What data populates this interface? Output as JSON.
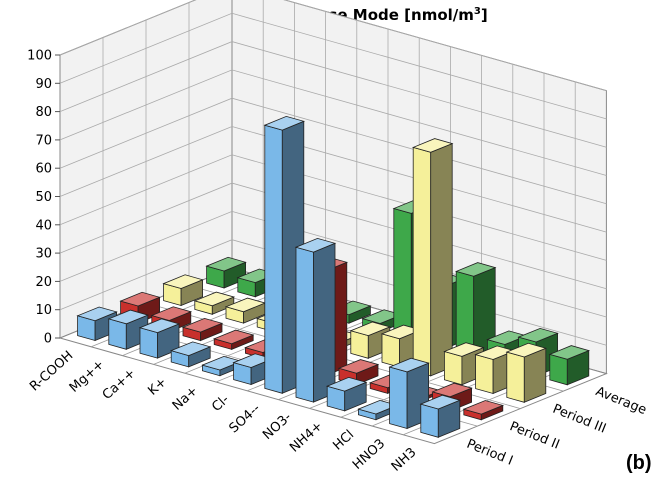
{
  "figure_tag": "(b)",
  "chart_data": {
    "type": "bar",
    "title_text": "Observation: Coarse Mode [nmol/m",
    "title_sup": "3",
    "title_close": "]",
    "categories": [
      "R-COOH",
      "Mg++",
      "Ca++",
      "K+",
      "Na+",
      "Cl-",
      "SO4--",
      "NO3-",
      "NH4+",
      "HCl",
      "HNO3",
      "NH3"
    ],
    "series": [
      {
        "name": "Period I",
        "color": "#7ab8e8",
        "values": [
          7,
          9,
          9,
          4,
          2,
          6,
          93,
          53,
          7,
          2,
          20,
          10
        ]
      },
      {
        "name": "Period II",
        "color": "#c8302c",
        "values": [
          6,
          4,
          3,
          2,
          2,
          2,
          37,
          4,
          2,
          1,
          5,
          2
        ]
      },
      {
        "name": "Period III",
        "color": "#f5f09a",
        "values": [
          6,
          3,
          4,
          3,
          3,
          2,
          8,
          10,
          79,
          10,
          12,
          16
        ]
      },
      {
        "name": "Average",
        "color": "#3ea84a",
        "values": [
          6,
          5,
          5,
          3,
          3,
          3,
          45,
          22,
          29,
          8,
          12,
          9
        ]
      }
    ],
    "ylim": [
      0,
      100
    ],
    "yticks": [
      0,
      10,
      20,
      30,
      40,
      50,
      60,
      70,
      80,
      90,
      100
    ]
  }
}
